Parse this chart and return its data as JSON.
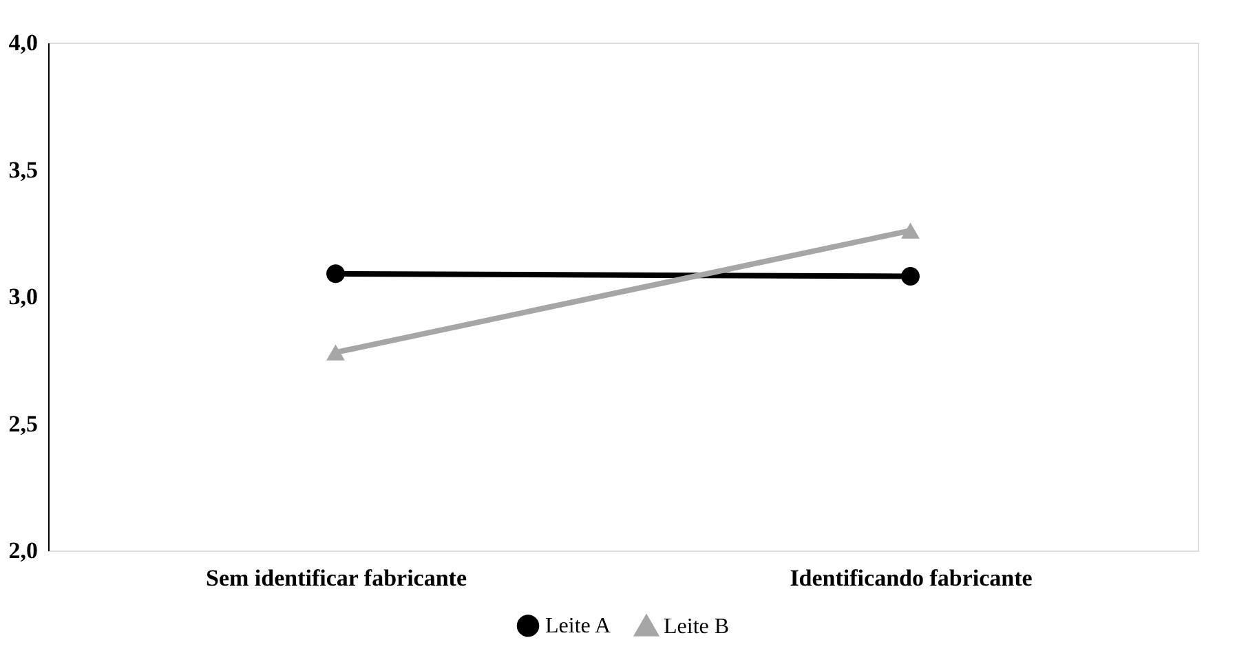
{
  "chart_data": {
    "type": "line",
    "categories": [
      "Sem identificar fabricante",
      "Identificando fabricante"
    ],
    "series": [
      {
        "name": "Leite A",
        "color": "#000000",
        "values": [
          3.09,
          3.08
        ],
        "marker": "circle"
      },
      {
        "name": "Leite B",
        "color": "#a6a6a6",
        "values": [
          2.78,
          3.26
        ],
        "marker": "triangle"
      }
    ],
    "ylim": [
      2.0,
      4.0
    ],
    "yticks": [
      {
        "value": 2.0,
        "label": "2,0"
      },
      {
        "value": 2.5,
        "label": "2,5"
      },
      {
        "value": 3.0,
        "label": "3,0"
      },
      {
        "value": 3.5,
        "label": "3,5"
      },
      {
        "value": 4.0,
        "label": "4,0"
      }
    ],
    "grid": false,
    "legend": "bottom",
    "line_style": "solid"
  }
}
